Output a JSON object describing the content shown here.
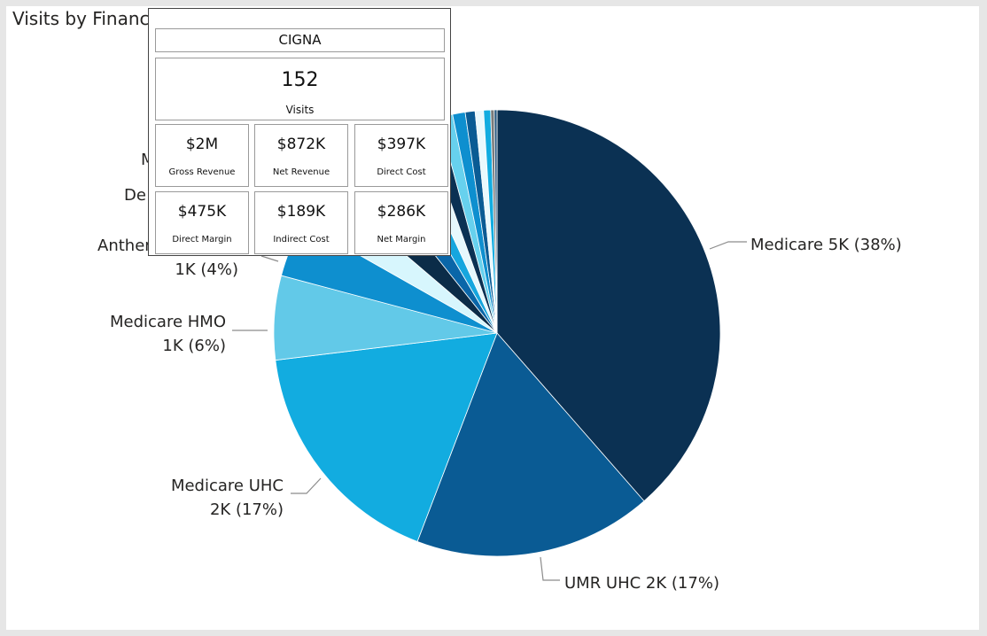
{
  "chart_data": {
    "type": "pie",
    "title": "Visits by Financial Class",
    "slices": [
      {
        "name": "Medicare",
        "label": "Medicare 5K (38%)",
        "value": 38,
        "color": "#0b3153"
      },
      {
        "name": "UMR UHC",
        "label": "UMR UHC 2K (17%)",
        "value": 17,
        "color": "#0a5b94"
      },
      {
        "name": "Medicare UHC",
        "label_line1": "Medicare UHC",
        "label_line2": "2K (17%)",
        "value": 17,
        "color": "#12ace0"
      },
      {
        "name": "Medicare HMO",
        "label_line1": "Medicare HMO",
        "label_line2": "1K (6%)",
        "value": 6,
        "color": "#62c9e8"
      },
      {
        "name": "Anthem",
        "label_line1": "Anthem",
        "label_line2": "1K (4%)",
        "value": 4,
        "color": "#0e8fcf"
      },
      {
        "name": "De",
        "label_line1": "De",
        "value": 3,
        "color": "#d7f6fd"
      },
      {
        "name": "M",
        "label_line1": "M",
        "value": 3,
        "color": "#0b2c48"
      },
      {
        "name": "s8",
        "value": 2.2,
        "color": "#0a66a8"
      },
      {
        "name": "s9",
        "value": 1.6,
        "color": "#16a6de"
      },
      {
        "name": "s10",
        "value": 1.4,
        "color": "#e6f8fd"
      },
      {
        "name": "s11",
        "value": 1.2,
        "color": "#0b3153"
      },
      {
        "name": "s12",
        "value": 1.0,
        "color": "#67d1ee"
      },
      {
        "name": "s13",
        "value": 0.9,
        "color": "#0e8fcf"
      },
      {
        "name": "s14",
        "value": 0.7,
        "color": "#0a5b94"
      },
      {
        "name": "s15",
        "value": 0.6,
        "color": "#eaf9fd"
      },
      {
        "name": "s16",
        "value": 0.5,
        "color": "#12ace0"
      },
      {
        "name": "s17",
        "value": 0.25,
        "color": "#7a7a7a"
      },
      {
        "name": "s18",
        "value": 0.2,
        "color": "#2a5a80"
      }
    ]
  },
  "tooltip": {
    "name": "CIGNA",
    "visits_value": "152",
    "visits_label": "Visits",
    "metrics": [
      {
        "value": "$2M",
        "label": "Gross Revenue"
      },
      {
        "value": "$872K",
        "label": "Net Revenue"
      },
      {
        "value": "$397K",
        "label": "Direct Cost"
      },
      {
        "value": "$475K",
        "label": "Direct Margin"
      },
      {
        "value": "$189K",
        "label": "Indirect Cost"
      },
      {
        "value": "$286K",
        "label": "Net Margin"
      }
    ]
  }
}
